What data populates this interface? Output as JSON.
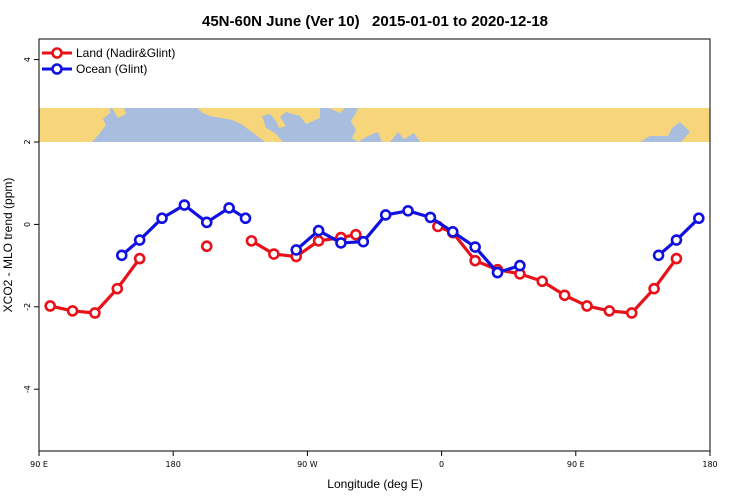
{
  "chart_data": {
    "type": "line",
    "title": "45N-60N June (Ver 10)   2015-01-01 to 2020-12-18",
    "xlabel": "Longitude (deg E)",
    "ylabel": "XCO2 - MLO trend (ppm)",
    "xlim": [
      90,
      540
    ],
    "ylim": [
      -5.5,
      4.5
    ],
    "x_ticks": [
      {
        "value": 90,
        "label": "90 E"
      },
      {
        "value": 180,
        "label": "180"
      },
      {
        "value": 270,
        "label": "90 W"
      },
      {
        "value": 360,
        "label": "0"
      },
      {
        "value": 450,
        "label": "90 E"
      },
      {
        "value": 540,
        "label": "180"
      }
    ],
    "y_ticks": [
      {
        "value": 4,
        "label": "4"
      },
      {
        "value": 2,
        "label": "2"
      },
      {
        "value": 0,
        "label": "0"
      },
      {
        "value": -2,
        "label": "-2"
      },
      {
        "value": -4,
        "label": "-4"
      }
    ],
    "grid": false,
    "legend_position": "top-left",
    "map_strip": {
      "y_range": [
        2.0,
        2.8
      ],
      "land_color": "#f7d57a",
      "ocean_color": "#a9bedf"
    },
    "series": [
      {
        "name": "Land (Nadir&Glint)",
        "color": "#e8111a",
        "segments": [
          [
            [
              97.5,
              -1.98
            ],
            [
              112.5,
              -2.1
            ],
            [
              127.5,
              -2.15
            ],
            [
              142.5,
              -1.56
            ],
            [
              157.5,
              -0.83
            ]
          ],
          [
            [
              202.5,
              -0.53
            ]
          ],
          [
            [
              232.5,
              -0.4
            ],
            [
              247.5,
              -0.72
            ],
            [
              262.5,
              -0.78
            ],
            [
              277.5,
              -0.4
            ],
            [
              292.5,
              -0.32
            ],
            [
              302.5,
              -0.25
            ]
          ],
          [
            [
              357.5,
              -0.05
            ],
            [
              367.5,
              -0.2
            ],
            [
              382.5,
              -0.88
            ],
            [
              397.5,
              -1.1
            ],
            [
              412.5,
              -1.2
            ],
            [
              427.5,
              -1.38
            ],
            [
              442.5,
              -1.72
            ],
            [
              457.5,
              -1.98
            ],
            [
              472.5,
              -2.1
            ],
            [
              487.5,
              -2.15
            ],
            [
              502.5,
              -1.56
            ],
            [
              517.5,
              -0.83
            ]
          ]
        ]
      },
      {
        "name": "Ocean (Glint)",
        "color": "#1010e0",
        "segments": [
          [
            [
              145.5,
              -0.75
            ],
            [
              157.5,
              -0.38
            ],
            [
              172.5,
              0.15
            ],
            [
              187.5,
              0.47
            ],
            [
              202.5,
              0.05
            ],
            [
              217.5,
              0.4
            ],
            [
              228.5,
              0.15
            ]
          ],
          [
            [
              262.5,
              -0.62
            ],
            [
              277.5,
              -0.15
            ],
            [
              292.5,
              -0.45
            ],
            [
              307.5,
              -0.42
            ],
            [
              322.5,
              0.23
            ],
            [
              337.5,
              0.33
            ],
            [
              352.5,
              0.17
            ],
            [
              367.5,
              -0.18
            ],
            [
              382.5,
              -0.55
            ],
            [
              397.5,
              -1.17
            ],
            [
              412.5,
              -1.0
            ]
          ],
          [
            [
              505.5,
              -0.75
            ],
            [
              517.5,
              -0.38
            ],
            [
              532.5,
              0.15
            ]
          ]
        ]
      }
    ]
  }
}
